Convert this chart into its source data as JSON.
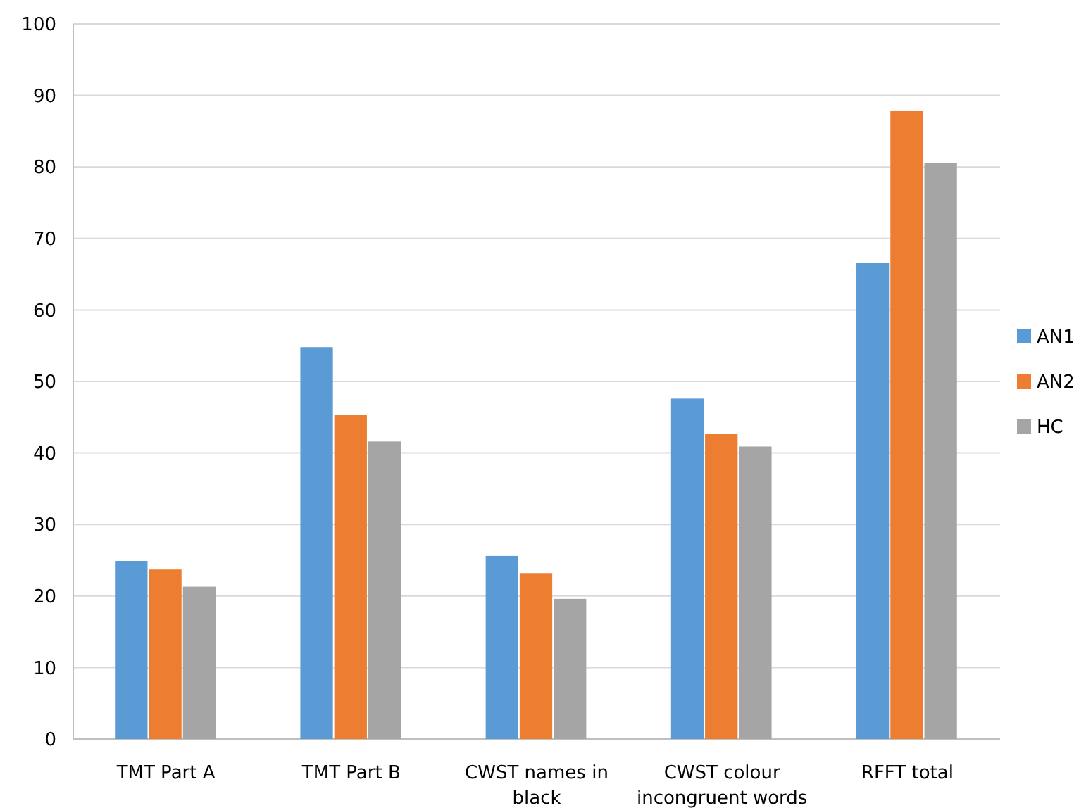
{
  "chart_data": {
    "type": "bar",
    "categories": [
      "TMT Part A",
      "TMT Part B",
      "CWST names in black",
      "CWST colour incongruent words",
      "RFFT total"
    ],
    "series": [
      {
        "name": "AN1",
        "color": "#5b9bd5",
        "values": [
          24.9,
          54.8,
          25.6,
          47.6,
          66.6
        ]
      },
      {
        "name": "AN2",
        "color": "#ed7d31",
        "values": [
          23.7,
          45.3,
          23.2,
          42.7,
          87.9
        ]
      },
      {
        "name": "HC",
        "color": "#a5a5a5",
        "values": [
          21.3,
          41.6,
          19.6,
          40.9,
          80.6
        ]
      }
    ],
    "ylim": [
      0,
      100
    ],
    "yticks": [
      0,
      10,
      20,
      30,
      40,
      50,
      60,
      70,
      80,
      90,
      100
    ],
    "grid": "y",
    "legend": "right"
  }
}
